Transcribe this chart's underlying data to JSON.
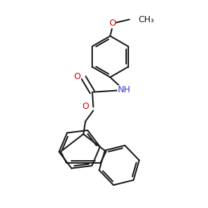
{
  "background_color": "#ffffff",
  "line_color": "#1a1a1a",
  "oxygen_color": "#cc0000",
  "nitrogen_color": "#3333cc",
  "bond_lw": 1.5,
  "font_size": 9,
  "fig_size": [
    3.0,
    3.0
  ],
  "dpi": 100,
  "xlim": [
    0,
    10
  ],
  "ylim": [
    0,
    10
  ]
}
